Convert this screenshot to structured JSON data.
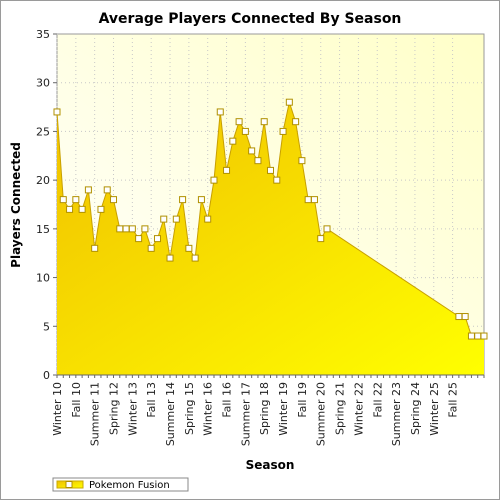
{
  "chart_data": {
    "type": "area",
    "title": "Average Players Connected By Season",
    "xlabel": "Season",
    "ylabel": "Players Connected",
    "ylim": [
      0,
      35
    ],
    "yticks": [
      0,
      5,
      10,
      15,
      20,
      25,
      30,
      35
    ],
    "grid": true,
    "legend_position": "bottom-left",
    "tick_labels": [
      "Winter 10",
      "Fall 10",
      "Summer 11",
      "Spring 12",
      "Winter 13",
      "Fall 13",
      "Summer 14",
      "Spring 15",
      "Winter 16",
      "Fall 16",
      "Summer 17",
      "Spring 18",
      "Winter 19",
      "Fall 19",
      "Summer 20",
      "Spring 21",
      "Winter 22",
      "Fall 22",
      "Summer 23",
      "Spring 24",
      "Winter 25",
      "Fall 25"
    ],
    "series": [
      {
        "name": "Pokemon Fusion",
        "color": "#f5d400",
        "values": [
          27,
          18,
          17,
          18,
          17,
          19,
          13,
          17,
          19,
          18,
          15,
          15,
          15,
          14,
          15,
          13,
          14,
          16,
          12,
          16,
          18,
          13,
          12,
          18,
          16,
          20,
          27,
          21,
          24,
          26,
          25,
          23,
          22,
          26,
          21,
          20,
          25,
          28,
          26,
          22,
          18,
          18,
          14,
          15,
          null,
          null,
          null,
          null,
          null,
          null,
          null,
          null,
          null,
          null,
          null,
          null,
          null,
          null,
          null,
          null,
          null,
          null,
          null,
          null,
          6,
          6,
          4,
          4,
          4
        ]
      }
    ]
  }
}
